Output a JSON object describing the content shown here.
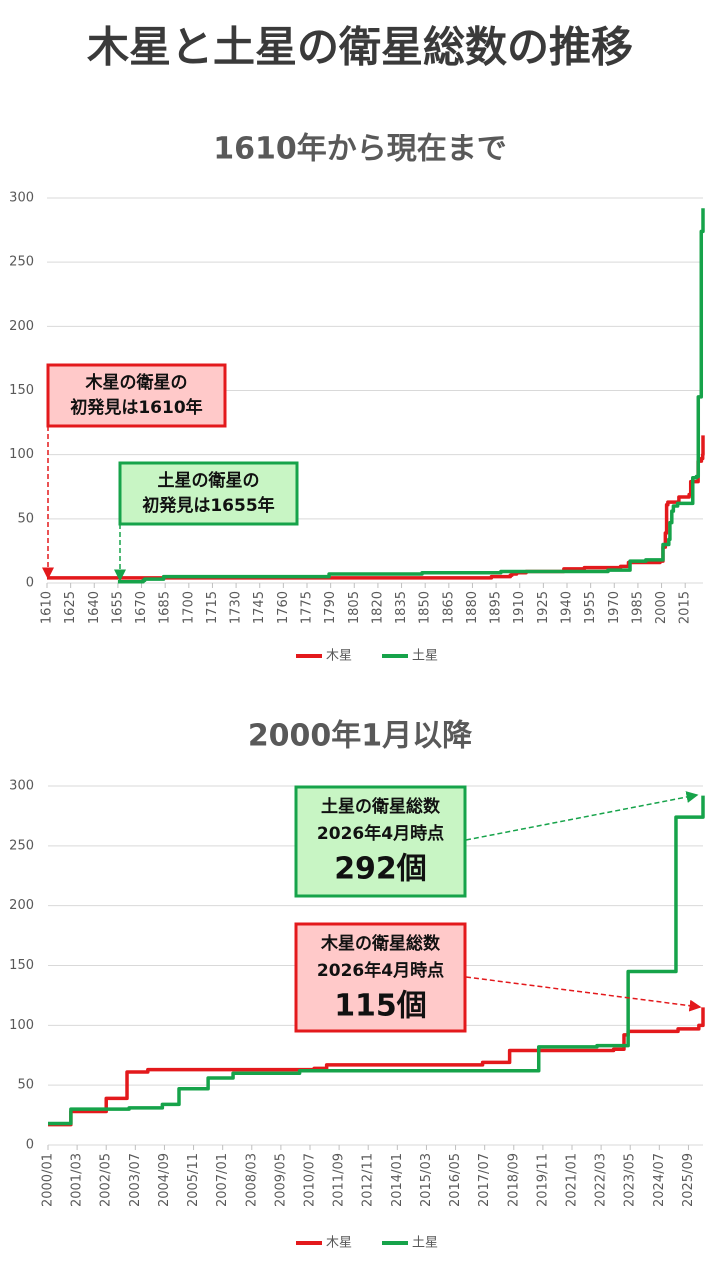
{
  "title": "木星と土星の衛星総数の推移",
  "chart_data": [
    {
      "type": "line",
      "step": true,
      "title": "1610年から現在まで",
      "xlim": [
        1610,
        2026.3
      ],
      "xticks": [
        1610,
        1625,
        1640,
        1655,
        1670,
        1685,
        1700,
        1715,
        1730,
        1745,
        1760,
        1775,
        1790,
        1805,
        1820,
        1835,
        1850,
        1865,
        1880,
        1895,
        1910,
        1925,
        1940,
        1955,
        1970,
        1985,
        2000,
        2015
      ],
      "ylim": [
        0,
        300
      ],
      "yticks": [
        0,
        50,
        100,
        150,
        200,
        250,
        300
      ],
      "grid": true,
      "legend": "bottom",
      "series": [
        {
          "name": "木星",
          "color": "#e3191c",
          "x": [
            1610,
            1892,
            1904,
            1905,
            1908,
            1914,
            1938,
            1951,
            1974,
            1979,
            1999,
            2000.9,
            2002.4,
            2003.2,
            2004,
            2011,
            2017.5,
            2018.5,
            2023.2,
            2025.3,
            2026.1,
            2026.3
          ],
          "values": [
            4,
            5,
            6,
            7,
            8,
            9,
            11,
            12,
            13,
            16,
            17,
            28,
            39,
            61,
            63,
            67,
            69,
            79,
            95,
            97,
            100,
            115
          ]
        },
        {
          "name": "土星",
          "color": "#16a34a",
          "x": [
            1655,
            1671,
            1672,
            1684,
            1789,
            1848,
            1898,
            1966,
            1980,
            1990,
            2000.9,
            2004.6,
            2005.3,
            2006.5,
            2007.5,
            2010.2,
            2019.8,
            2022.1,
            2023.3,
            2025.2,
            2026.3
          ],
          "values": [
            1,
            2,
            3,
            5,
            7,
            8,
            9,
            10,
            17,
            18,
            30,
            34,
            47,
            56,
            60,
            62,
            82,
            83,
            145,
            274,
            292
          ]
        }
      ],
      "annotations": [
        {
          "lines": [
            "木星の衛星の",
            "初発見は1610年"
          ],
          "color": "#e3191c",
          "fill": "#ffc9c9"
        },
        {
          "lines": [
            "土星の衛星の",
            "初発見は1655年"
          ],
          "color": "#16a34a",
          "fill": "#c8f5c4"
        }
      ]
    },
    {
      "type": "line",
      "step": true,
      "title": "2000年1月以降",
      "xlim": [
        "2000/01",
        "2026/04"
      ],
      "xticks": [
        "2000/01",
        "2001/03",
        "2002/05",
        "2003/07",
        "2004/09",
        "2005/11",
        "2007/01",
        "2008/03",
        "2009/05",
        "2010/07",
        "2011/09",
        "2012/11",
        "2014/01",
        "2015/03",
        "2016/05",
        "2017/07",
        "2018/09",
        "2019/11",
        "2021/01",
        "2022/03",
        "2023/05",
        "2024/07",
        "2025/09"
      ],
      "ylim": [
        0,
        300
      ],
      "yticks": [
        0,
        50,
        100,
        150,
        200,
        250,
        300
      ],
      "grid": true,
      "legend": "bottom",
      "series": [
        {
          "name": "木星",
          "color": "#e3191c",
          "x": [
            "2000/01",
            "2000/12",
            "2002/05",
            "2003/03",
            "2004/01",
            "2010/09",
            "2011/03",
            "2017/06",
            "2018/07",
            "2022/09",
            "2023/02",
            "2023/04",
            "2025/04",
            "2026/02",
            "2026/04"
          ],
          "values": [
            17,
            28,
            39,
            61,
            63,
            64,
            67,
            69,
            79,
            80,
            92,
            95,
            97,
            100,
            115
          ]
        },
        {
          "name": "土星",
          "color": "#16a34a",
          "x": [
            "2000/01",
            "2000/12",
            "2003/04",
            "2004/08",
            "2005/04",
            "2006/06",
            "2007/06",
            "2010/02",
            "2019/09",
            "2022/01",
            "2023/04",
            "2025/03",
            "2026/04"
          ],
          "values": [
            18,
            30,
            31,
            34,
            47,
            56,
            60,
            62,
            82,
            83,
            145,
            274,
            292
          ]
        }
      ],
      "annotations": [
        {
          "lines": [
            "土星の衛星総数",
            "2026年4月時点",
            "292個"
          ],
          "color": "#16a34a",
          "fill": "#c8f5c4"
        },
        {
          "lines": [
            "木星の衛星総数",
            "2026年4月時点",
            "115個"
          ],
          "color": "#e3191c",
          "fill": "#ffc9c9"
        }
      ]
    }
  ]
}
